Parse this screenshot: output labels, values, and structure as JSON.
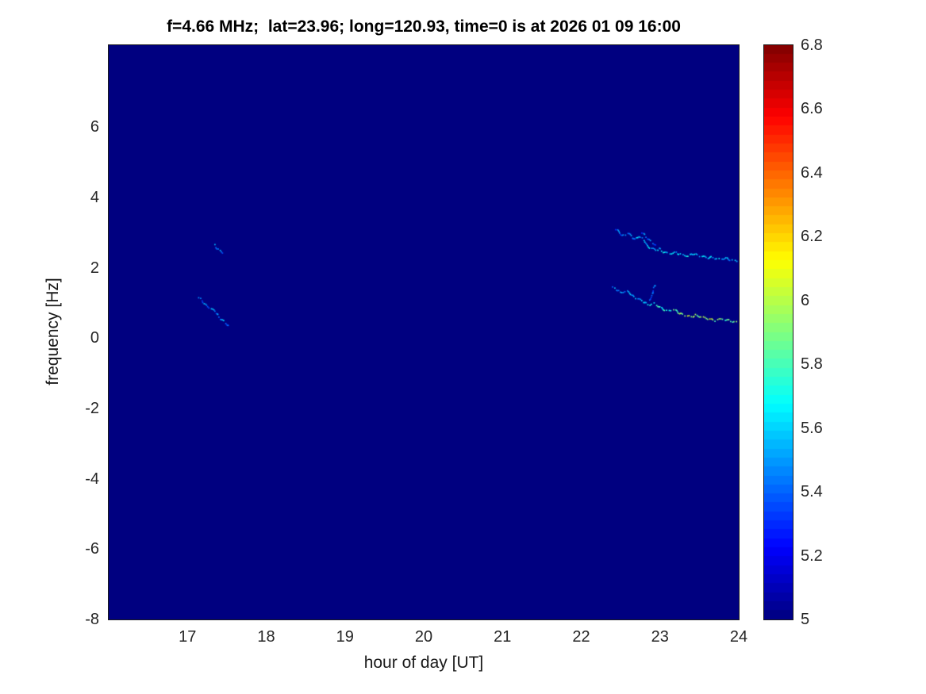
{
  "figure": {
    "background": "#ffffff",
    "plot_background_color": "#00008f",
    "text_color": "#262626"
  },
  "chart_data": {
    "type": "heatmap",
    "title": "f=4.66 MHz;  lat=23.96; long=120.93, time=0 is at 2026 01 09 16:00",
    "xlabel": "hour of day [UT]",
    "ylabel": "frequency [Hz]",
    "xlim": [
      16,
      24
    ],
    "ylim": [
      -8,
      8.33
    ],
    "xticks": [
      17,
      18,
      19,
      20,
      21,
      22,
      23,
      24
    ],
    "yticks": [
      -8,
      -6,
      -4,
      -2,
      0,
      2,
      4,
      6
    ],
    "grid": false,
    "legend": "none",
    "colormap": "jet",
    "background_value": 5,
    "colorbar": {
      "min": 5,
      "max": 6.8,
      "ticks": [
        5,
        5.2,
        5.4,
        5.6,
        5.8,
        6,
        6.2,
        6.4,
        6.6,
        6.8
      ],
      "levels": 64,
      "position": "right"
    },
    "traces": [
      {
        "name": "left-descending-streak",
        "points": [
          [
            17.13,
            1.18,
            5.4
          ],
          [
            17.18,
            1.05,
            5.45
          ],
          [
            17.22,
            0.98,
            5.5
          ],
          [
            17.27,
            0.9,
            5.45
          ],
          [
            17.32,
            0.8,
            5.5
          ],
          [
            17.36,
            0.72,
            5.4
          ],
          [
            17.4,
            0.62,
            5.45
          ],
          [
            17.44,
            0.52,
            5.5
          ],
          [
            17.48,
            0.42,
            5.45
          ],
          [
            17.52,
            0.33,
            5.4
          ]
        ]
      },
      {
        "name": "left-upper-dots",
        "points": [
          [
            17.34,
            2.66,
            5.45
          ],
          [
            17.37,
            2.58,
            5.5
          ],
          [
            17.41,
            2.5,
            5.45
          ],
          [
            17.44,
            2.44,
            5.4
          ]
        ]
      },
      {
        "name": "upper-right-trace",
        "points": [
          [
            22.42,
            3.12,
            5.4
          ],
          [
            22.48,
            3.02,
            5.45
          ],
          [
            22.52,
            2.92,
            5.4
          ],
          [
            22.58,
            3.0,
            5.5
          ],
          [
            22.63,
            2.9,
            5.45
          ],
          [
            22.68,
            2.82,
            5.5
          ],
          [
            22.73,
            2.92,
            5.55
          ],
          [
            22.78,
            2.8,
            5.5
          ],
          [
            22.83,
            2.66,
            5.55
          ],
          [
            22.88,
            2.58,
            5.6
          ],
          [
            22.93,
            2.52,
            5.55
          ],
          [
            22.98,
            2.56,
            5.6
          ],
          [
            23.03,
            2.48,
            5.65
          ],
          [
            23.1,
            2.42,
            5.6
          ],
          [
            23.18,
            2.46,
            5.55
          ],
          [
            23.26,
            2.4,
            5.6
          ],
          [
            23.34,
            2.36,
            5.65
          ],
          [
            23.42,
            2.42,
            5.6
          ],
          [
            23.5,
            2.36,
            5.55
          ],
          [
            23.58,
            2.3,
            5.6
          ],
          [
            23.66,
            2.32,
            5.55
          ],
          [
            23.74,
            2.26,
            5.6
          ],
          [
            23.82,
            2.3,
            5.55
          ],
          [
            23.9,
            2.24,
            5.5
          ],
          [
            23.98,
            2.2,
            5.55
          ]
        ]
      },
      {
        "name": "upper-right-branch",
        "points": [
          [
            22.74,
            3.05,
            5.4
          ],
          [
            22.79,
            2.95,
            5.45
          ],
          [
            22.84,
            2.85,
            5.4
          ],
          [
            22.89,
            2.75,
            5.45
          ],
          [
            22.94,
            2.65,
            5.4
          ]
        ]
      },
      {
        "name": "lower-right-trace",
        "points": [
          [
            22.38,
            1.46,
            5.45
          ],
          [
            22.44,
            1.4,
            5.5
          ],
          [
            22.5,
            1.32,
            5.45
          ],
          [
            22.56,
            1.36,
            5.5
          ],
          [
            22.62,
            1.26,
            5.55
          ],
          [
            22.68,
            1.18,
            5.5
          ],
          [
            22.74,
            1.1,
            5.55
          ],
          [
            22.8,
            1.02,
            5.6
          ],
          [
            22.86,
            0.96,
            5.65
          ],
          [
            22.92,
            1.0,
            5.7
          ],
          [
            22.98,
            0.9,
            5.75
          ],
          [
            23.04,
            0.84,
            5.7
          ],
          [
            23.1,
            0.78,
            5.75
          ],
          [
            23.16,
            0.84,
            5.8
          ],
          [
            23.22,
            0.74,
            5.9
          ],
          [
            23.3,
            0.68,
            5.95
          ],
          [
            23.38,
            0.62,
            6.0
          ],
          [
            23.46,
            0.68,
            5.9
          ],
          [
            23.54,
            0.6,
            5.95
          ],
          [
            23.62,
            0.56,
            6.05
          ],
          [
            23.7,
            0.52,
            5.9
          ],
          [
            23.78,
            0.56,
            5.85
          ],
          [
            23.86,
            0.52,
            5.8
          ],
          [
            23.94,
            0.48,
            5.9
          ],
          [
            24.0,
            0.46,
            5.8
          ]
        ]
      },
      {
        "name": "lower-right-wisp",
        "points": [
          [
            22.86,
            1.12,
            5.45
          ],
          [
            22.89,
            1.28,
            5.4
          ],
          [
            22.92,
            1.44,
            5.45
          ],
          [
            22.95,
            1.58,
            5.4
          ]
        ]
      }
    ]
  }
}
